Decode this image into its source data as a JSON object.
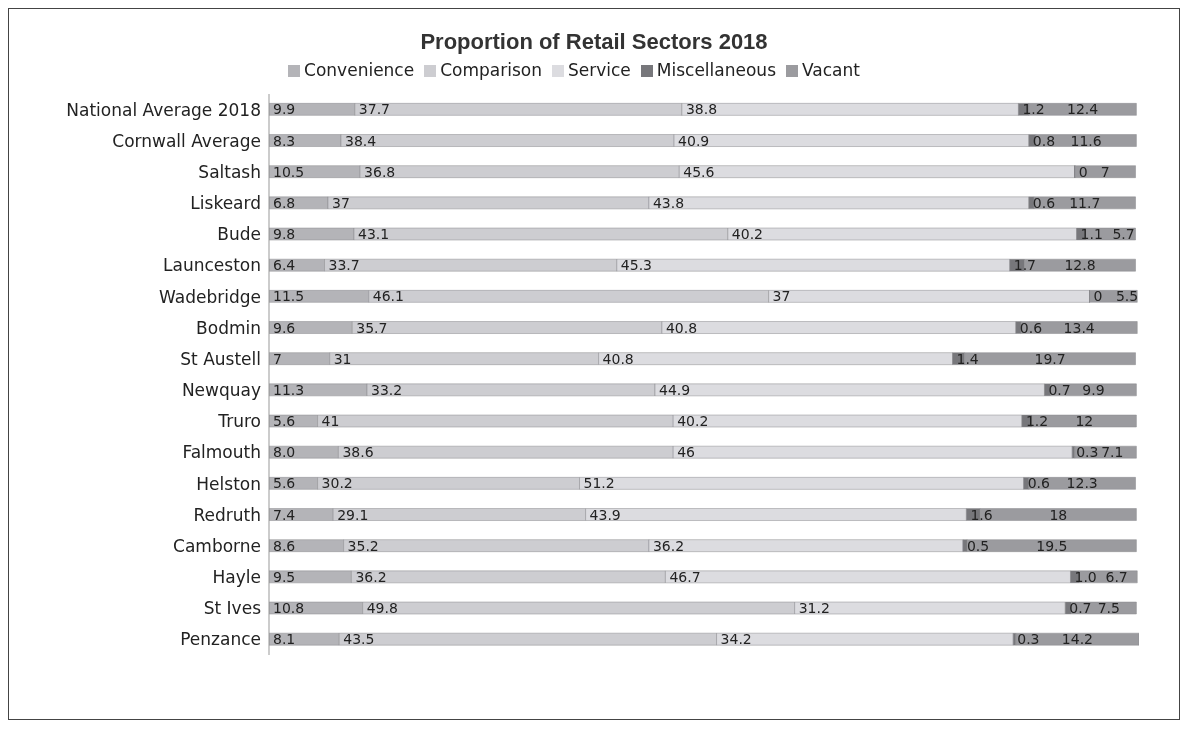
{
  "chart_data": {
    "type": "bar",
    "title": "Proportion of Retail Sectors 2018",
    "orientation": "horizontal",
    "stacked": true,
    "data_labels": true,
    "legend": "top",
    "categories": [
      "National Average 2018",
      "Cornwall Average",
      "Saltash",
      "Liskeard",
      "Bude",
      "Launceston",
      "Wadebridge",
      "Bodmin",
      "St Austell",
      "Newquay",
      "Truro",
      "Falmouth",
      "Helston",
      "Redruth",
      "Camborne",
      "Hayle",
      "St Ives",
      "Penzance"
    ],
    "series": [
      {
        "name": "Convenience",
        "color": "#b4b4b8",
        "values": [
          9.9,
          8.3,
          10.5,
          6.8,
          9.8,
          6.4,
          11.5,
          9.6,
          7,
          11.3,
          5.6,
          8.0,
          5.6,
          7.4,
          8.6,
          9.5,
          10.8,
          8.1
        ],
        "value_labels": [
          "9.9",
          "8.3",
          "10.5",
          "6.8",
          "9.8",
          "6.4",
          "11.5",
          "9.6",
          "7",
          "11.3",
          "5.6",
          "8.0",
          "5.6",
          "7.4",
          "8.6",
          "9.5",
          "10.8",
          "8.1"
        ]
      },
      {
        "name": "Comparison",
        "color": "#cdcdd1",
        "values": [
          37.7,
          38.4,
          36.8,
          37,
          43.1,
          33.7,
          46.1,
          35.7,
          31,
          33.2,
          41,
          38.6,
          30.2,
          29.1,
          35.2,
          36.2,
          49.8,
          43.5
        ],
        "value_labels": [
          "37.7",
          "38.4",
          "36.8",
          "37",
          "43.1",
          "33.7",
          "46.1",
          "35.7",
          "31",
          "33.2",
          "41",
          "38.6",
          "30.2",
          "29.1",
          "35.2",
          "36.2",
          "49.8",
          "43.5"
        ]
      },
      {
        "name": "Service",
        "color": "#dcdce0",
        "values": [
          38.8,
          40.9,
          45.6,
          43.8,
          40.2,
          45.3,
          37,
          40.8,
          40.8,
          44.9,
          40.2,
          46,
          51.2,
          43.9,
          36.2,
          46.7,
          31.2,
          34.2
        ],
        "value_labels": [
          "38.8",
          "40.9",
          "45.6",
          "43.8",
          "40.2",
          "45.3",
          "37",
          "40.8",
          "40.8",
          "44.9",
          "40.2",
          "46",
          "51.2",
          "43.9",
          "36.2",
          "46.7",
          "31.2",
          "34.2"
        ]
      },
      {
        "name": "Miscellaneous",
        "color": "#77777b",
        "values": [
          1.2,
          0.8,
          0,
          0.6,
          1.1,
          1.7,
          0,
          0.6,
          1.4,
          0.7,
          1.2,
          0.3,
          0.6,
          1.6,
          0.5,
          1.0,
          0.7,
          0.3
        ],
        "value_labels": [
          "1.2",
          "0.8",
          "0",
          "0.6",
          "1.1",
          "1.7",
          "0",
          "0.6",
          "1.4",
          "0.7",
          "1.2",
          "0.3",
          "0.6",
          "1.6",
          "0.5",
          "1.0",
          "0.7",
          "0.3"
        ]
      },
      {
        "name": "Vacant",
        "color": "#9b9b9f",
        "values": [
          12.4,
          11.6,
          7,
          11.7,
          5.7,
          12.8,
          5.5,
          13.4,
          19.7,
          9.9,
          12,
          7.1,
          12.3,
          18,
          19.5,
          6.7,
          7.5,
          14.2
        ],
        "value_labels": [
          "12.4",
          "11.6",
          "7",
          "11.7",
          "5.7",
          "12.8",
          "5.5",
          "13.4",
          "19.7",
          "9.9",
          "12",
          "7.1",
          "12.3",
          "18",
          "19.5",
          "6.7",
          "7.5",
          "14.2"
        ]
      }
    ]
  }
}
